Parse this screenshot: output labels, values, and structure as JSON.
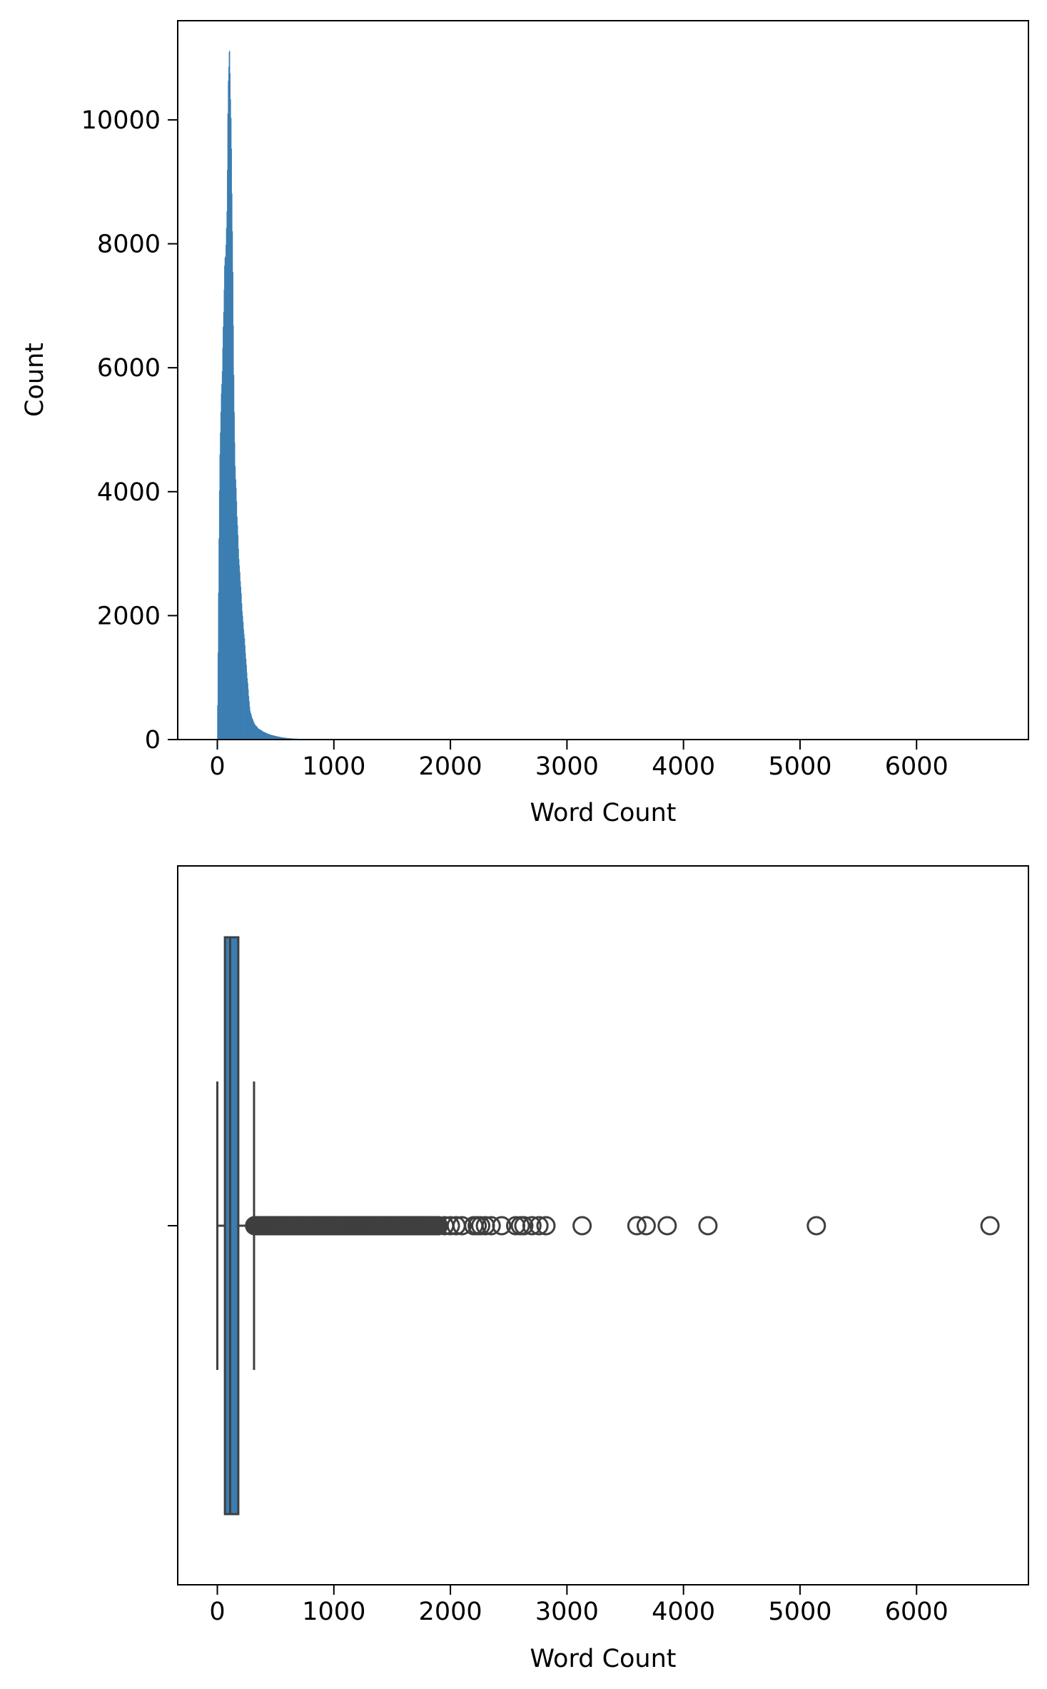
{
  "chart_data": [
    {
      "type": "histogram",
      "xlabel": "Word Count",
      "ylabel": "Count",
      "xlim": [
        -340,
        6960
      ],
      "ylim": [
        0,
        11600
      ],
      "xticks": [
        0,
        1000,
        2000,
        3000,
        4000,
        5000,
        6000
      ],
      "yticks": [
        0,
        2000,
        4000,
        6000,
        8000,
        10000
      ],
      "xtick_labels": [
        "0",
        "1000",
        "2000",
        "3000",
        "4000",
        "5000",
        "6000"
      ],
      "ytick_labels": [
        "0",
        "2000",
        "4000",
        "6000",
        "8000",
        "10000"
      ],
      "grid": false,
      "color": "#3b7db1",
      "bin_width": 4,
      "profile": [
        [
          0,
          200
        ],
        [
          4,
          900
        ],
        [
          8,
          1900
        ],
        [
          12,
          2900
        ],
        [
          16,
          3700
        ],
        [
          20,
          4300
        ],
        [
          24,
          4800
        ],
        [
          28,
          5100
        ],
        [
          32,
          5400
        ],
        [
          36,
          5600
        ],
        [
          40,
          5900
        ],
        [
          44,
          6200
        ],
        [
          48,
          6500
        ],
        [
          52,
          6800
        ],
        [
          56,
          7100
        ],
        [
          60,
          7400
        ],
        [
          64,
          7600
        ],
        [
          68,
          7800
        ],
        [
          72,
          7900
        ],
        [
          76,
          8100
        ],
        [
          80,
          8400
        ],
        [
          84,
          8900
        ],
        [
          88,
          9700
        ],
        [
          92,
          10300
        ],
        [
          96,
          10700
        ],
        [
          100,
          11000
        ],
        [
          104,
          11050
        ],
        [
          108,
          10950
        ],
        [
          112,
          10750
        ],
        [
          116,
          10300
        ],
        [
          120,
          9800
        ],
        [
          124,
          9200
        ],
        [
          128,
          8500
        ],
        [
          132,
          7800
        ],
        [
          136,
          7000
        ],
        [
          140,
          6300
        ],
        [
          144,
          5600
        ],
        [
          148,
          5000
        ],
        [
          152,
          4600
        ],
        [
          160,
          4100
        ],
        [
          170,
          3600
        ],
        [
          180,
          3200
        ],
        [
          190,
          2800
        ],
        [
          200,
          2500
        ],
        [
          210,
          2200
        ],
        [
          220,
          1950
        ],
        [
          230,
          1700
        ],
        [
          240,
          1450
        ],
        [
          250,
          1200
        ],
        [
          260,
          950
        ],
        [
          270,
          700
        ],
        [
          280,
          480
        ],
        [
          300,
          340
        ],
        [
          320,
          250
        ],
        [
          350,
          180
        ],
        [
          400,
          120
        ],
        [
          450,
          80
        ],
        [
          500,
          55
        ],
        [
          550,
          35
        ],
        [
          600,
          22
        ],
        [
          650,
          14
        ],
        [
          700,
          9
        ],
        [
          800,
          4
        ],
        [
          900,
          2
        ],
        [
          1000,
          1
        ],
        [
          1200,
          0.5
        ],
        [
          1600,
          0.2
        ],
        [
          2000,
          0
        ]
      ]
    },
    {
      "type": "box",
      "xlabel": "Word Count",
      "xlim": [
        -340,
        6960
      ],
      "xticks": [
        0,
        1000,
        2000,
        3000,
        4000,
        5000,
        6000
      ],
      "xtick_labels": [
        "0",
        "1000",
        "2000",
        "3000",
        "4000",
        "5000",
        "6000"
      ],
      "grid": false,
      "box_color": "#3b7db1",
      "line_color": "#3f3f3f",
      "min": 0,
      "q1": 65,
      "median": 110,
      "q3": 180,
      "whisker_high": 315,
      "outliers_dense_range": [
        320,
        1900
      ],
      "outliers": [
        1950,
        2000,
        2050,
        2100,
        2200,
        2230,
        2260,
        2300,
        2350,
        2440,
        2560,
        2600,
        2630,
        2700,
        2760,
        2820,
        3130,
        3600,
        3680,
        3860,
        4210,
        5140,
        6630
      ]
    }
  ]
}
